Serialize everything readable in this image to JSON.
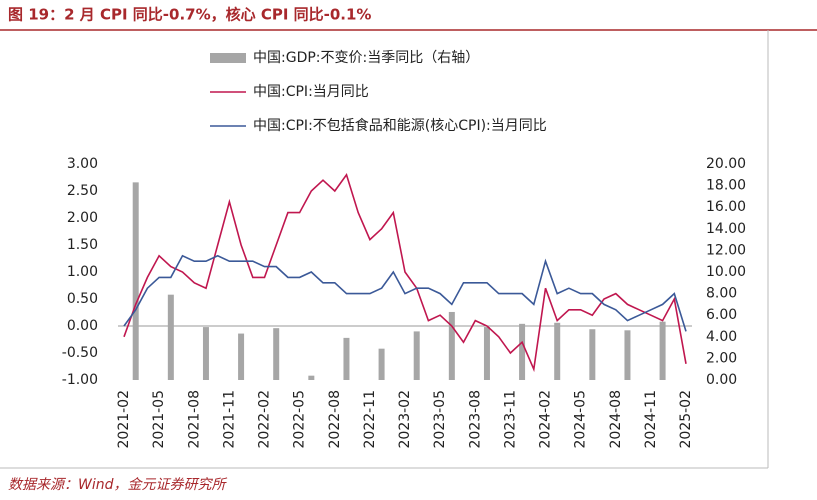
{
  "chart_data": {
    "type": "bar-line",
    "title": "图 19：2 月 CPI 同比-0.7%，核心 CPI 同比-0.1%",
    "source": "数据来源：Wind，金元证券研究所",
    "categories": [
      "2021-02",
      null,
      null,
      "2021-05",
      null,
      null,
      "2021-08",
      null,
      null,
      "2021-11",
      null,
      null,
      "2022-02",
      null,
      null,
      "2022-05",
      null,
      null,
      "2022-08",
      null,
      null,
      "2022-11",
      null,
      null,
      "2023-02",
      null,
      null,
      "2023-05",
      null,
      null,
      "2023-08",
      null,
      null,
      "2023-11",
      null,
      null,
      "2024-02",
      null,
      null,
      "2024-05",
      null,
      null,
      "2024-08",
      null,
      null,
      "2024-11",
      null,
      null,
      "2025-02"
    ],
    "series": [
      {
        "name": "中国:GDP:不变价:当季同比（右轴）",
        "type": "bar",
        "axis": "y2",
        "color": "#a6a6a6",
        "values": [
          null,
          18.3,
          null,
          null,
          7.9,
          null,
          null,
          4.9,
          null,
          null,
          4.3,
          null,
          null,
          4.8,
          null,
          null,
          0.4,
          null,
          null,
          3.9,
          null,
          null,
          2.9,
          null,
          null,
          4.5,
          null,
          null,
          6.3,
          null,
          null,
          4.9,
          null,
          null,
          5.2,
          null,
          null,
          5.3,
          null,
          null,
          4.7,
          null,
          null,
          4.6,
          null,
          null,
          5.4,
          null,
          null
        ]
      },
      {
        "name": "中国:CPI:当月同比",
        "type": "line",
        "color": "#c0174f",
        "values": [
          -0.2,
          0.4,
          0.9,
          1.3,
          1.1,
          1.0,
          0.8,
          0.7,
          1.5,
          2.3,
          1.5,
          0.9,
          0.9,
          1.5,
          2.1,
          2.1,
          2.5,
          2.7,
          2.5,
          2.8,
          2.1,
          1.6,
          1.8,
          2.1,
          1.0,
          0.7,
          0.1,
          0.2,
          0.0,
          -0.3,
          0.1,
          0.0,
          -0.2,
          -0.5,
          -0.3,
          -0.8,
          0.7,
          0.1,
          0.3,
          0.3,
          0.2,
          0.5,
          0.6,
          0.4,
          0.3,
          0.2,
          0.1,
          0.5,
          -0.7
        ]
      },
      {
        "name": "中国:CPI:不包括食品和能源(核心CPI):当月同比",
        "type": "line",
        "color": "#3b5998",
        "values": [
          0.0,
          0.3,
          0.7,
          0.9,
          0.9,
          1.3,
          1.2,
          1.2,
          1.3,
          1.2,
          1.2,
          1.2,
          1.1,
          1.1,
          0.9,
          0.9,
          1.0,
          0.8,
          0.8,
          0.6,
          0.6,
          0.6,
          0.7,
          1.0,
          0.6,
          0.7,
          0.7,
          0.6,
          0.4,
          0.8,
          0.8,
          0.8,
          0.6,
          0.6,
          0.6,
          0.4,
          1.2,
          0.6,
          0.7,
          0.6,
          0.6,
          0.4,
          0.3,
          0.1,
          0.2,
          0.3,
          0.4,
          0.6,
          -0.1
        ]
      }
    ],
    "ylim": [
      -1,
      3
    ],
    "yticks": [
      {
        "value": -1,
        "label": "-1.00"
      },
      {
        "value": -0.5,
        "label": "-0.50"
      },
      {
        "value": 0,
        "label": "0.00"
      },
      {
        "value": 0.5,
        "label": "0.50"
      },
      {
        "value": 1,
        "label": "1.00"
      },
      {
        "value": 1.5,
        "label": "1.50"
      },
      {
        "value": 2,
        "label": "2.00"
      },
      {
        "value": 2.5,
        "label": "2.50"
      },
      {
        "value": 3,
        "label": "3.00"
      }
    ],
    "y2lim": [
      0,
      20
    ],
    "y2ticks": [
      {
        "value": 0,
        "label": "0.00"
      },
      {
        "value": 2,
        "label": "2.00"
      },
      {
        "value": 4,
        "label": "4.00"
      },
      {
        "value": 6,
        "label": "6.00"
      },
      {
        "value": 8,
        "label": "8.00"
      },
      {
        "value": 10,
        "label": "10.00"
      },
      {
        "value": 12,
        "label": "12.00"
      },
      {
        "value": 14,
        "label": "14.00"
      },
      {
        "value": 16,
        "label": "16.00"
      },
      {
        "value": 18,
        "label": "18.00"
      },
      {
        "value": 20,
        "label": "20.00"
      }
    ]
  }
}
